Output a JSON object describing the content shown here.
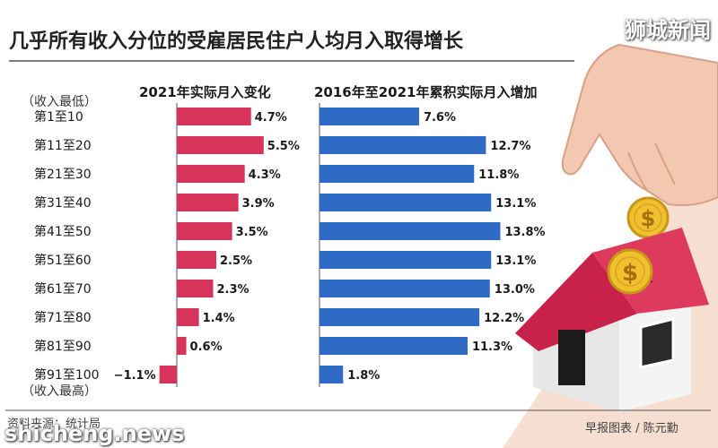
{
  "header": {
    "title": "几乎所有收入分位的受雇居民住户人均月入取得增长",
    "watermark": "狮城新闻"
  },
  "footer": {
    "source": "资料来源：统计局",
    "credit": "早报图表 / 陈元勤",
    "site": "shicheng.news"
  },
  "chart_data": {
    "type": "bar",
    "orientation": "horizontal",
    "categories": [
      "第1至10",
      "第11至20",
      "第21至30",
      "第31至40",
      "第41至50",
      "第51至60",
      "第61至70",
      "第71至80",
      "第81至90",
      "第91至100"
    ],
    "category_annotations": {
      "top": "（收入最低）",
      "bottom": "（收入最高）"
    },
    "series": [
      {
        "name": "2021年实际月入变化",
        "color": "#d6345a",
        "values": [
          4.7,
          5.5,
          4.3,
          3.9,
          3.5,
          2.5,
          2.3,
          1.4,
          0.6,
          -1.1
        ],
        "labels": [
          "4.7%",
          "5.5%",
          "4.3%",
          "3.9%",
          "3.5%",
          "2.5%",
          "2.3%",
          "1.4%",
          "0.6%",
          "−1.1%"
        ]
      },
      {
        "name": "2016年至2021年累积实际月入增加",
        "color": "#2f6bc4",
        "values": [
          7.6,
          12.7,
          11.8,
          13.1,
          13.8,
          13.1,
          13.0,
          12.2,
          11.3,
          1.8
        ],
        "labels": [
          "7.6%",
          "12.7%",
          "11.8%",
          "13.1%",
          "13.8%",
          "13.1%",
          "13.0%",
          "12.2%",
          "11.3%",
          "1.8%"
        ]
      }
    ]
  }
}
